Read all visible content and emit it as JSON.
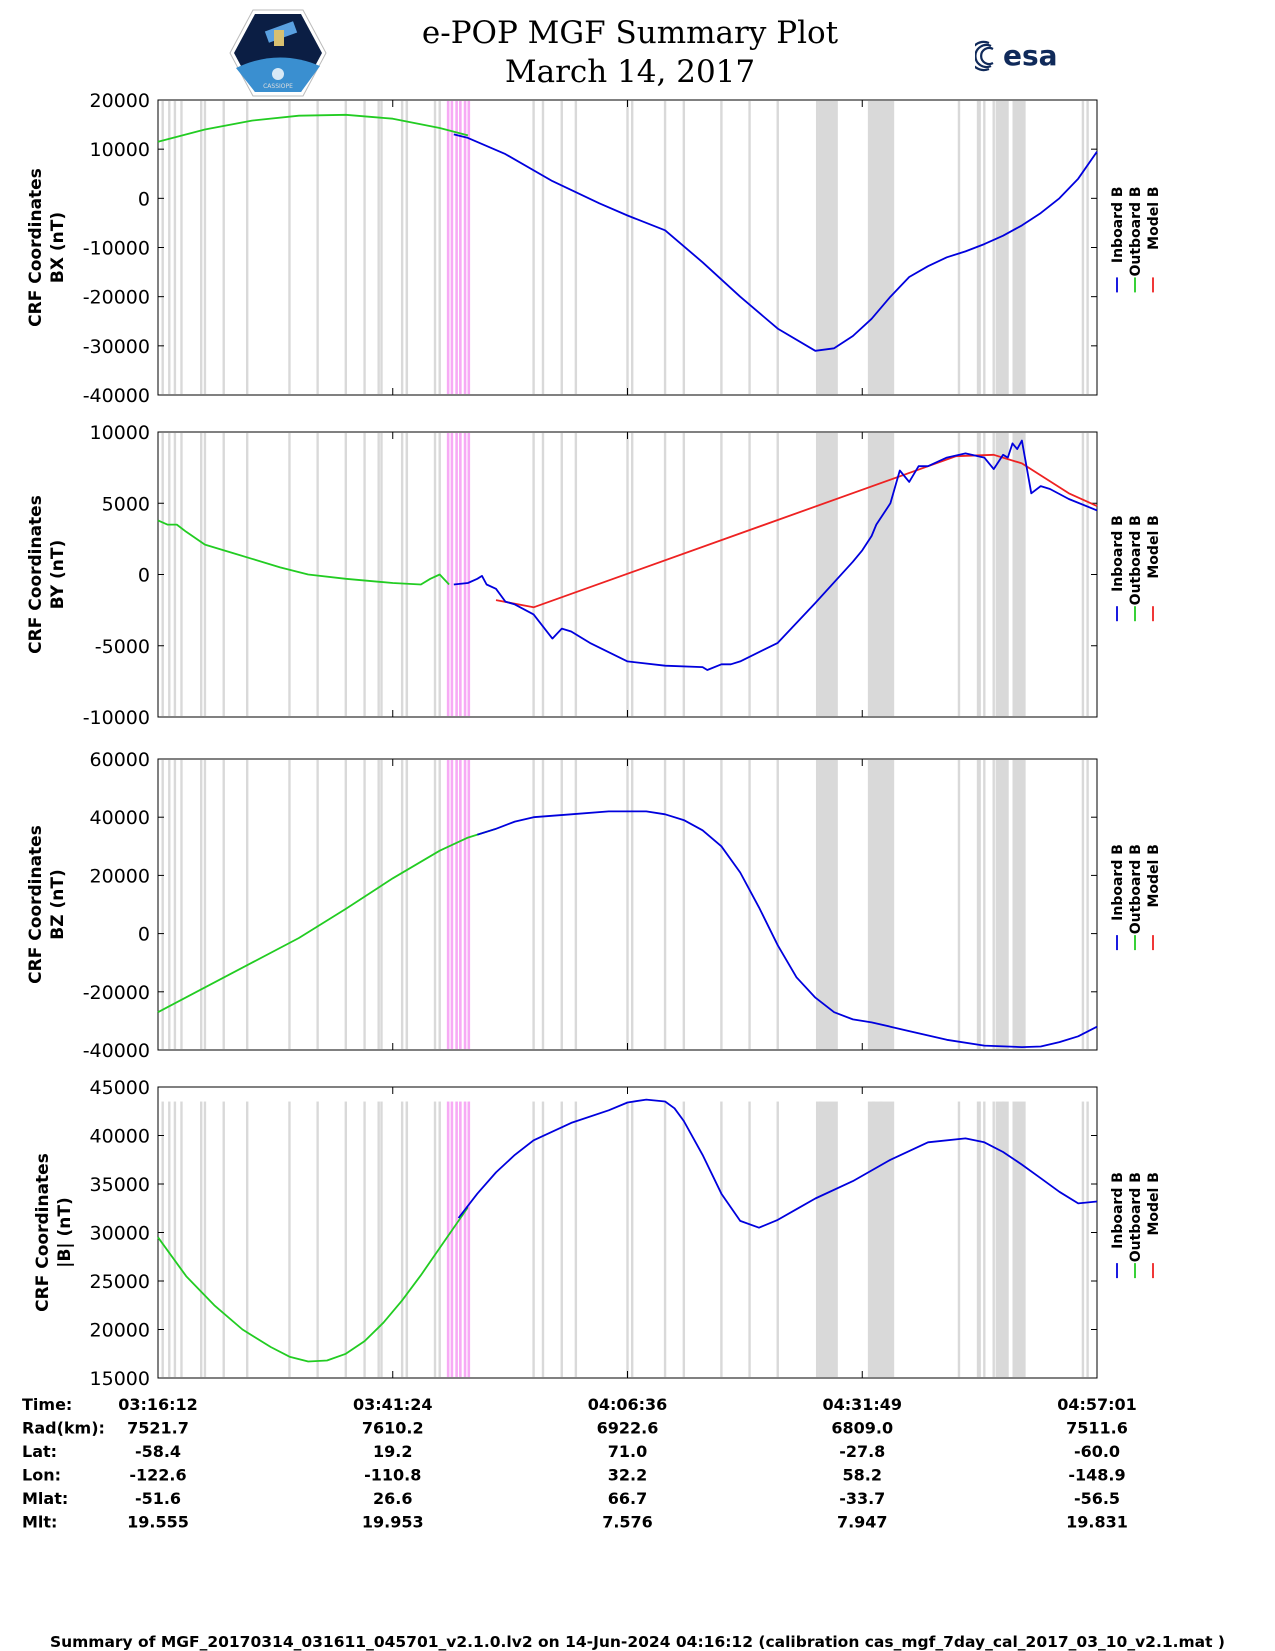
{
  "header": {
    "title": "e-POP MGF Summary Plot",
    "date": "March 14, 2017",
    "logo_right_text": "esa",
    "logo_left_text": "CASSIOPE"
  },
  "colors": {
    "inboard": "#0000dd",
    "outboard": "#22cc22",
    "model": "#ee2222",
    "grey_band": "#d9d9d9",
    "pink_band": "#f7aaf5"
  },
  "chart_data": [
    {
      "type": "line",
      "ylabel": [
        "CRF Coordinates",
        "BX (nT)"
      ],
      "ylim": [
        -40000,
        20000
      ],
      "yticks": [
        20000,
        10000,
        0,
        -10000,
        -20000,
        -30000,
        -40000
      ],
      "ytick_labels": [
        "20000",
        "10000",
        "0",
        "-10000",
        "-20000",
        "-30000",
        "-40000"
      ],
      "legend": [
        "Inboard B",
        "Outboard B",
        "Model B"
      ],
      "outboard": {
        "x": [
          0,
          0.05,
          0.1,
          0.15,
          0.2,
          0.25,
          0.3,
          0.33
        ],
        "y": [
          11500,
          14000,
          15800,
          16800,
          17000,
          16200,
          14300,
          12800
        ]
      },
      "inboard": {
        "x": [
          0.315,
          0.33,
          0.37,
          0.42,
          0.47,
          0.5,
          0.54,
          0.58,
          0.62,
          0.66,
          0.7,
          0.72,
          0.74,
          0.76,
          0.78,
          0.8,
          0.82,
          0.84,
          0.86,
          0.88,
          0.9,
          0.92,
          0.94,
          0.96,
          0.98,
          1.0
        ],
        "y": [
          13000,
          12300,
          9000,
          3500,
          -1000,
          -3500,
          -6500,
          -13000,
          -20000,
          -26500,
          -31000,
          -30500,
          -28000,
          -24500,
          -20000,
          -16000,
          -13800,
          -12000,
          -10800,
          -9300,
          -7600,
          -5500,
          -3000,
          0,
          4000,
          9500
        ]
      }
    },
    {
      "type": "line",
      "ylabel": [
        "CRF Coordinates",
        "BY (nT)"
      ],
      "ylim": [
        -10000,
        10000
      ],
      "yticks": [
        10000,
        5000,
        0,
        -5000,
        -10000
      ],
      "ytick_labels": [
        "10000",
        "5000",
        "0",
        "-5000",
        "-10000"
      ],
      "legend": [
        "Inboard B",
        "Outboard B",
        "Model B"
      ],
      "outboard": {
        "x": [
          0,
          0.01,
          0.02,
          0.03,
          0.05,
          0.08,
          0.1,
          0.13,
          0.16,
          0.2,
          0.25,
          0.28,
          0.29,
          0.3,
          0.31
        ],
        "y": [
          3800,
          3500,
          3500,
          3000,
          2100,
          1500,
          1100,
          500,
          0,
          -300,
          -600,
          -700,
          -300,
          0,
          -700
        ]
      },
      "model": {
        "x": [
          0.36,
          0.4,
          0.85,
          0.89,
          0.92,
          0.97,
          1.0
        ],
        "y": [
          -1800,
          -2300,
          8300,
          8400,
          7800,
          5700,
          4800
        ]
      },
      "inboard": {
        "x": [
          0.315,
          0.33,
          0.34,
          0.345,
          0.35,
          0.36,
          0.37,
          0.38,
          0.4,
          0.42,
          0.43,
          0.44,
          0.46,
          0.5,
          0.54,
          0.58,
          0.585,
          0.6,
          0.61,
          0.62,
          0.66,
          0.7,
          0.74,
          0.75,
          0.76,
          0.765,
          0.78,
          0.79,
          0.8,
          0.81,
          0.82,
          0.84,
          0.86,
          0.88,
          0.89,
          0.9,
          0.905,
          0.91,
          0.915,
          0.92,
          0.93,
          0.94,
          0.95,
          0.97,
          1.0
        ],
        "y": [
          -700,
          -600,
          -300,
          -100,
          -700,
          -1000,
          -1900,
          -2100,
          -2800,
          -4500,
          -3800,
          -4000,
          -4800,
          -6100,
          -6400,
          -6500,
          -6700,
          -6300,
          -6300,
          -6100,
          -4800,
          -2000,
          900,
          1700,
          2700,
          3500,
          5000,
          7300,
          6500,
          7600,
          7600,
          8200,
          8500,
          8200,
          7400,
          8400,
          8200,
          9200,
          8800,
          9400,
          5700,
          6200,
          6000,
          5300,
          4500
        ]
      }
    },
    {
      "type": "line",
      "ylabel": [
        "CRF Coordinates",
        "BZ (nT)"
      ],
      "ylim": [
        -40000,
        60000
      ],
      "yticks": [
        60000,
        40000,
        20000,
        0,
        -20000,
        -40000
      ],
      "ytick_labels": [
        "60000",
        "40000",
        "20000",
        "0",
        "-20000",
        "-40000"
      ],
      "legend": [
        "Inboard B",
        "Outboard B",
        "Model B"
      ],
      "outboard": {
        "x": [
          0,
          0.05,
          0.1,
          0.15,
          0.2,
          0.25,
          0.3,
          0.33,
          0.36
        ],
        "y": [
          -27000,
          -18500,
          -10000,
          -1500,
          8500,
          19000,
          28500,
          33000,
          36000
        ]
      },
      "inboard": {
        "x": [
          0.34,
          0.36,
          0.38,
          0.4,
          0.44,
          0.48,
          0.52,
          0.54,
          0.56,
          0.58,
          0.6,
          0.62,
          0.64,
          0.66,
          0.68,
          0.7,
          0.72,
          0.74,
          0.76,
          0.78,
          0.8,
          0.84,
          0.88,
          0.92,
          0.94,
          0.96,
          0.98,
          1.0
        ],
        "y": [
          34000,
          36000,
          38500,
          40000,
          41000,
          42000,
          42000,
          41000,
          39000,
          35500,
          30000,
          21000,
          9000,
          -4000,
          -15000,
          -22000,
          -27000,
          -29500,
          -30500,
          -32000,
          -33500,
          -36500,
          -38500,
          -39000,
          -38800,
          -37300,
          -35300,
          -32000
        ]
      }
    },
    {
      "type": "line",
      "ylabel": [
        "CRF Coordinates",
        "|B| (nT)"
      ],
      "ylim": [
        15000,
        45000
      ],
      "yticks": [
        45000,
        40000,
        35000,
        30000,
        25000,
        20000,
        15000
      ],
      "ytick_labels": [
        "45000",
        "40000",
        "35000",
        "30000",
        "25000",
        "20000",
        "15000"
      ],
      "legend": [
        "Inboard B",
        "Outboard B",
        "Model B"
      ],
      "outboard": {
        "x": [
          0,
          0.03,
          0.06,
          0.09,
          0.12,
          0.14,
          0.16,
          0.18,
          0.2,
          0.22,
          0.24,
          0.26,
          0.28,
          0.3,
          0.32,
          0.33
        ],
        "y": [
          29500,
          25500,
          22500,
          20000,
          18200,
          17200,
          16700,
          16800,
          17500,
          18800,
          20700,
          23000,
          25600,
          28400,
          31200,
          32600
        ]
      },
      "inboard": {
        "x": [
          0.32,
          0.34,
          0.36,
          0.38,
          0.4,
          0.44,
          0.48,
          0.5,
          0.52,
          0.54,
          0.55,
          0.56,
          0.58,
          0.6,
          0.62,
          0.64,
          0.66,
          0.68,
          0.7,
          0.74,
          0.78,
          0.82,
          0.86,
          0.88,
          0.9,
          0.92,
          0.94,
          0.96,
          0.98,
          1.0
        ],
        "y": [
          31500,
          34000,
          36200,
          38000,
          39500,
          41300,
          42600,
          43400,
          43700,
          43500,
          42800,
          41500,
          38000,
          34000,
          31200,
          30500,
          31300,
          32400,
          33500,
          35300,
          37500,
          39300,
          39700,
          39300,
          38300,
          37000,
          35600,
          34200,
          33000,
          33200
        ]
      }
    }
  ],
  "time_axis": {
    "ticks": [
      "03:16:12",
      "03:41:24",
      "04:06:36",
      "04:31:49",
      "04:57:01"
    ]
  },
  "orbit_table": {
    "row_labels": [
      "Time:",
      "Rad(km):",
      "Lat:",
      "Lon:",
      "Mlat:",
      "Mlt:"
    ],
    "columns": [
      [
        "03:16:12",
        "7521.7",
        "-58.4",
        "-122.6",
        "-51.6",
        "19.555"
      ],
      [
        "03:41:24",
        "7610.2",
        "19.2",
        "-110.8",
        "26.6",
        "19.953"
      ],
      [
        "04:06:36",
        "6922.6",
        "71.0",
        "32.2",
        "66.7",
        "7.576"
      ],
      [
        "04:31:49",
        "6809.0",
        "-27.8",
        "58.2",
        "-33.7",
        "7.947"
      ],
      [
        "04:57:01",
        "7511.6",
        "-60.0",
        "-148.9",
        "-56.5",
        "19.831"
      ]
    ]
  },
  "footer": "Summary of MGF_20170314_031611_045701_v2.1.0.lv2 on 14-Jun-2024 04:16:12 (calibration cas_mgf_7day_cal_2017_03_10_v2.1.mat )"
}
